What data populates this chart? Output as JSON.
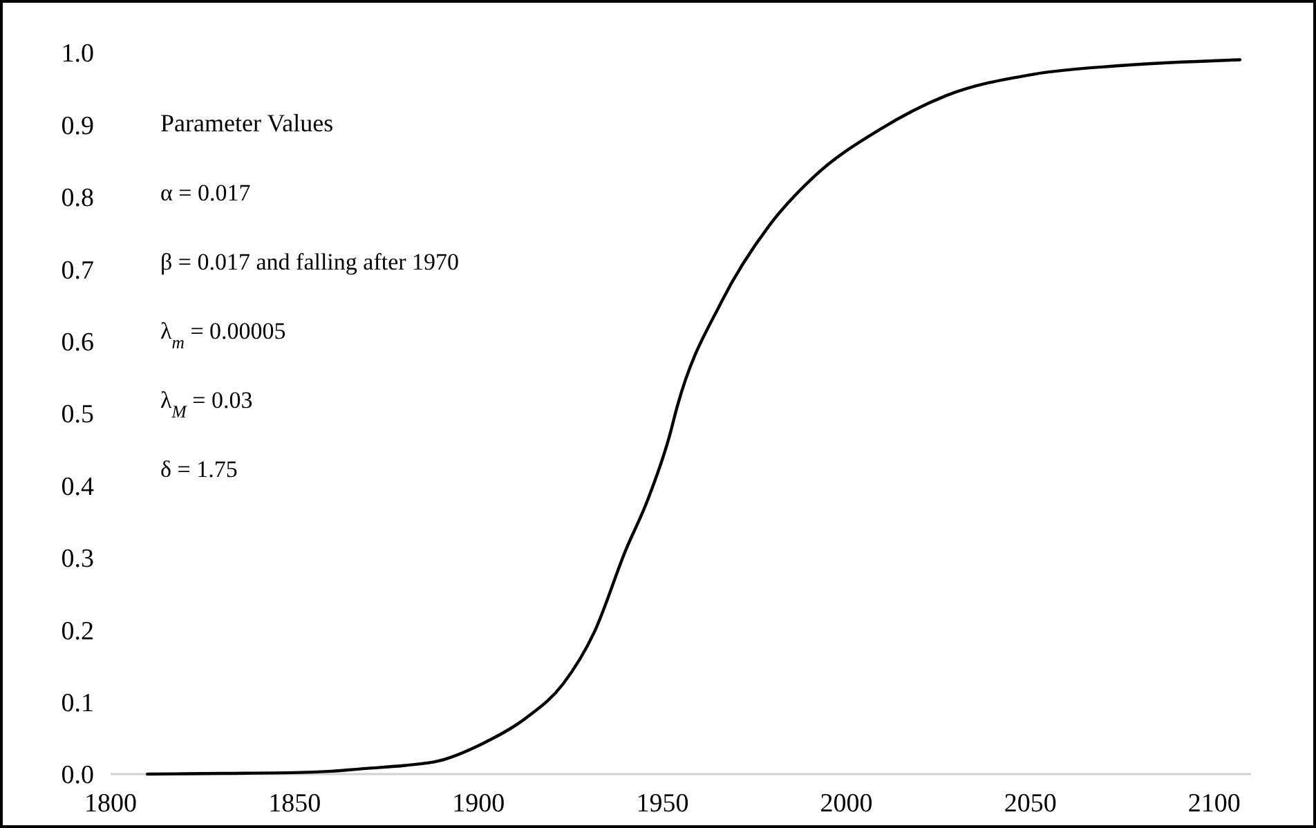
{
  "chart_data": {
    "type": "line",
    "x": [
      1810,
      1830,
      1850,
      1860,
      1870,
      1880,
      1889,
      1901,
      1913,
      1923,
      1931.5,
      1940,
      1946,
      1952,
      1954,
      1966,
      1979,
      1991,
      2009,
      2027,
      2051,
      2075,
      2107
    ],
    "values": [
      0,
      0.001,
      0.002,
      0.004,
      0.008,
      0.012,
      0.018,
      0.042,
      0.078,
      0.125,
      0.197,
      0.31,
      0.38,
      0.47,
      0.509,
      0.654,
      0.76,
      0.827,
      0.893,
      0.94,
      0.97,
      0.982,
      0.99
    ],
    "color": "#000000",
    "xlim": [
      1800,
      2110
    ],
    "xticks": [
      1800,
      1850,
      1900,
      1950,
      2000,
      2050,
      2100
    ],
    "ylim": [
      0,
      1
    ],
    "yticks": [
      {
        "value": 0,
        "label": "0.0"
      },
      0.1,
      0.2,
      0.3,
      0.4,
      0.5,
      0.6,
      0.7,
      0.8,
      0.9,
      {
        "value": 1,
        "label": "1.0"
      }
    ],
    "grid": false,
    "annotations": [
      "Parameter Values",
      "α = 0.017",
      "β = 0.017 and falling after 1970",
      "λ$_{m}$ = 0.00005",
      "λ$_{M}$ = 0.03",
      "δ = 1.75"
    ]
  }
}
